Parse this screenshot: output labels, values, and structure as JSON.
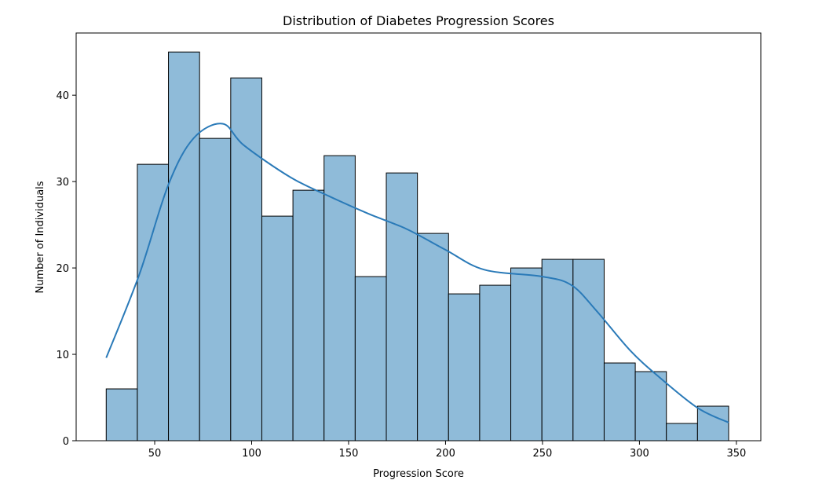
{
  "chart_data": {
    "type": "bar",
    "title": "Distribution of Diabetes Progression Scores",
    "xlabel": "Progression Score",
    "ylabel": "Number of Individuals",
    "bin_start": 25,
    "bin_end": 346,
    "values": [
      6,
      32,
      45,
      35,
      42,
      26,
      29,
      33,
      19,
      31,
      24,
      17,
      18,
      20,
      21,
      21,
      9,
      8,
      2,
      4
    ],
    "xlim": [
      9.5,
      362.6
    ],
    "ylim": [
      0,
      47.2
    ],
    "xticks": [
      50,
      100,
      150,
      200,
      250,
      300,
      350
    ],
    "yticks": [
      0,
      10,
      20,
      30,
      40
    ],
    "grid": false,
    "kde": {
      "x": [
        25,
        42,
        57,
        70,
        85,
        96,
        120,
        140,
        160,
        180,
        200,
        220,
        250,
        265,
        278,
        295,
        310,
        330,
        346
      ],
      "y": [
        9.6,
        19.2,
        29.6,
        35,
        36.7,
        34.2,
        30.5,
        28.3,
        26.3,
        24.5,
        22.1,
        19.8,
        19,
        18,
        15,
        10.5,
        7.4,
        3.8,
        2.1
      ]
    },
    "colors": {
      "bar_fill": "#8fbbd9",
      "bar_edge": "#000000",
      "kde_line": "#2a7ab8"
    }
  }
}
